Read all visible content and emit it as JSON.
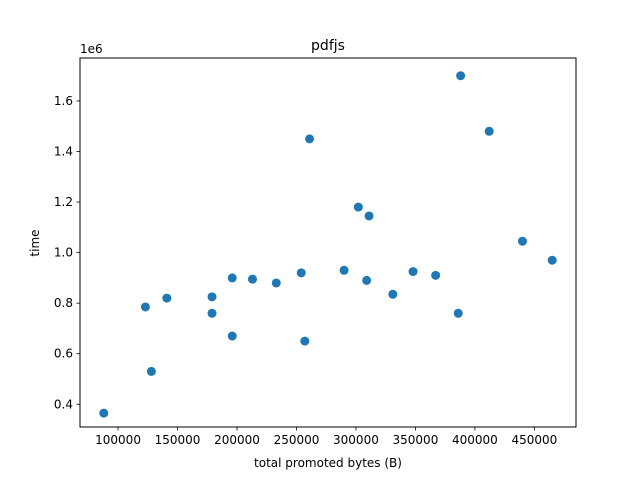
{
  "chart_data": {
    "type": "scatter",
    "title": "pdfjs",
    "xlabel": "total promoted bytes (B)",
    "ylabel": "time",
    "y_offset_label": "1e6",
    "xlim": [
      68000,
      485000
    ],
    "ylim": [
      0.31,
      1.77
    ],
    "x_ticks": [
      100000,
      150000,
      200000,
      250000,
      300000,
      350000,
      400000,
      450000
    ],
    "x_tick_labels": [
      "100000",
      "150000",
      "200000",
      "250000",
      "300000",
      "350000",
      "400000",
      "450000"
    ],
    "y_ticks": [
      0.4,
      0.6,
      0.8,
      1.0,
      1.2,
      1.4,
      1.6
    ],
    "y_tick_labels": [
      "0.4",
      "0.6",
      "0.8",
      "1.0",
      "1.2",
      "1.4",
      "1.6"
    ],
    "grid": false,
    "marker_color": "#1f77b4",
    "points": [
      {
        "x": 88000,
        "y": 0.365
      },
      {
        "x": 123000,
        "y": 0.785
      },
      {
        "x": 128000,
        "y": 0.53
      },
      {
        "x": 141000,
        "y": 0.82
      },
      {
        "x": 179000,
        "y": 0.825
      },
      {
        "x": 179000,
        "y": 0.76
      },
      {
        "x": 196000,
        "y": 0.9
      },
      {
        "x": 196000,
        "y": 0.67
      },
      {
        "x": 213000,
        "y": 0.895
      },
      {
        "x": 233000,
        "y": 0.88
      },
      {
        "x": 254000,
        "y": 0.92
      },
      {
        "x": 257000,
        "y": 0.65
      },
      {
        "x": 261000,
        "y": 1.45
      },
      {
        "x": 290000,
        "y": 0.93
      },
      {
        "x": 302000,
        "y": 1.18
      },
      {
        "x": 309000,
        "y": 0.89
      },
      {
        "x": 311000,
        "y": 1.145
      },
      {
        "x": 331000,
        "y": 0.835
      },
      {
        "x": 348000,
        "y": 0.925
      },
      {
        "x": 367000,
        "y": 0.91
      },
      {
        "x": 386000,
        "y": 0.76
      },
      {
        "x": 388000,
        "y": 1.7
      },
      {
        "x": 412000,
        "y": 1.48
      },
      {
        "x": 440000,
        "y": 1.045
      },
      {
        "x": 465000,
        "y": 0.97
      }
    ]
  }
}
